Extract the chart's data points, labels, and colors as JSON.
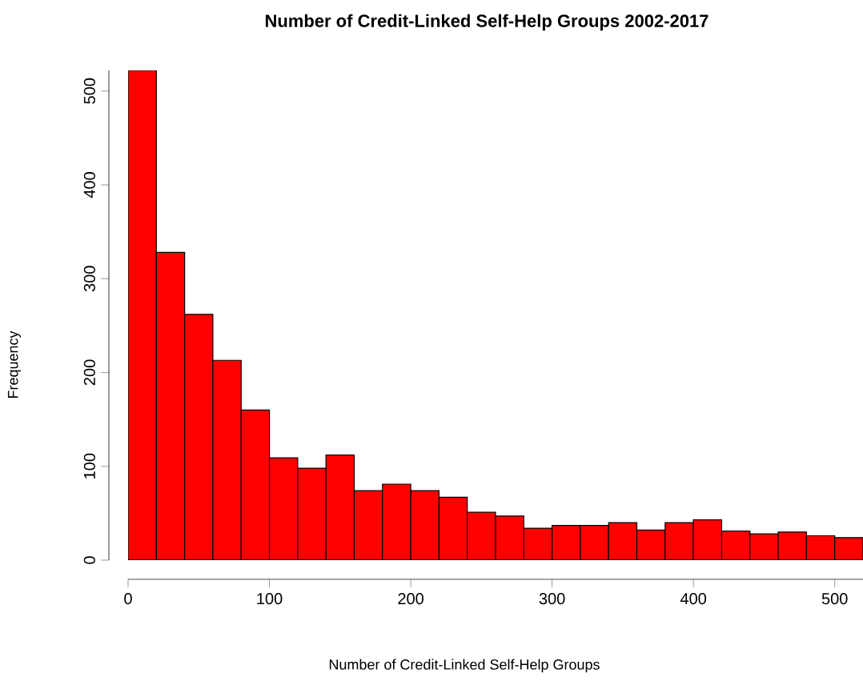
{
  "chart_data": {
    "type": "histogram",
    "title": "Number of Credit-Linked Self-Help Groups 2002-2017",
    "xlabel": "Number of Credit-Linked Self-Help Groups",
    "ylabel": "Frequency",
    "bins": [
      0,
      20,
      40,
      60,
      80,
      100,
      120,
      140,
      160,
      180,
      200,
      220,
      240,
      260,
      280,
      300,
      320,
      340,
      360,
      380,
      400,
      420,
      440,
      460,
      480,
      500,
      520
    ],
    "values": [
      522,
      328,
      262,
      213,
      160,
      109,
      98,
      112,
      74,
      81,
      74,
      67,
      51,
      47,
      34,
      37,
      37,
      40,
      32,
      40,
      43,
      31,
      28,
      30,
      26,
      24
    ],
    "color": "#ff0000",
    "xlim": [
      0,
      520
    ],
    "ylim": [
      0,
      522
    ],
    "xticks": [
      0,
      100,
      200,
      300,
      400,
      500
    ],
    "yticks": [
      0,
      100,
      200,
      300,
      400,
      500
    ],
    "grid": false
  }
}
